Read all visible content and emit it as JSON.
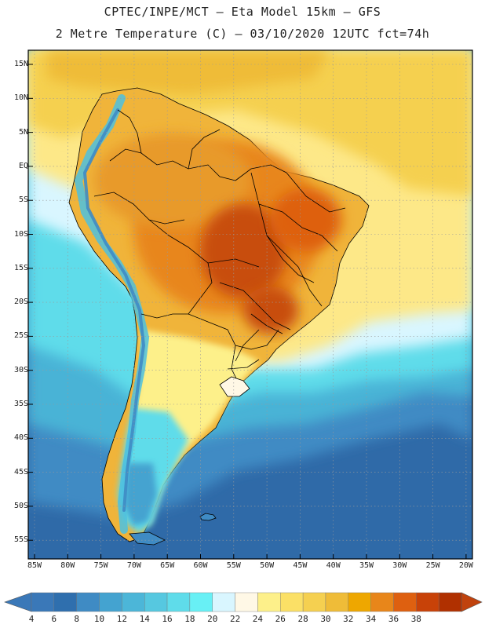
{
  "title": {
    "line1": "CPTEC/INPE/MCT –  Eta Model 15km – GFS",
    "line2": "2 Metre Temperature (C) – 03/10/2020 12UTC fct=74h"
  },
  "lat_labels": [
    "15N",
    "10N",
    "5N",
    "EQ",
    "5S",
    "10S",
    "15S",
    "20S",
    "25S",
    "30S",
    "35S",
    "40S",
    "45S",
    "50S",
    "55S"
  ],
  "lon_labels": [
    "85W",
    "80W",
    "75W",
    "70W",
    "65W",
    "60W",
    "55W",
    "50W",
    "45W",
    "40W",
    "35W",
    "30W",
    "25W",
    "20W"
  ],
  "colorbar": {
    "labels": [
      "4",
      "6",
      "8",
      "10",
      "12",
      "14",
      "16",
      "18",
      "20",
      "22",
      "24",
      "26",
      "28",
      "30",
      "32",
      "34",
      "36",
      "38"
    ],
    "colors": [
      "#3a78b8",
      "#2f6fae",
      "#3f8bc4",
      "#44a3d0",
      "#4cb6d8",
      "#56c8e0",
      "#5fdcea",
      "#68f0f5",
      "#d9f6ff",
      "#fff8e6",
      "#fdf08a",
      "#fbe066",
      "#f5d050",
      "#efbc38",
      "#eea700",
      "#e8861a",
      "#de6010",
      "#c84208",
      "#b03000"
    ],
    "min_color": "#3a78b8",
    "max_color": "#c0420d"
  },
  "colors": {
    "ocean_south": "#2f6aa8",
    "ocean_mid": "#49b3d6",
    "ocean_cyan": "#5fdcea",
    "ocean_pale": "#d9f6ff",
    "ocean_tropical": "#fde888",
    "land_warm": "#f0b43a",
    "land_hot": "#de7a1a",
    "land_hottest": "#c84d10",
    "andes_cold": "#4cc1e0",
    "border": "#000000"
  }
}
